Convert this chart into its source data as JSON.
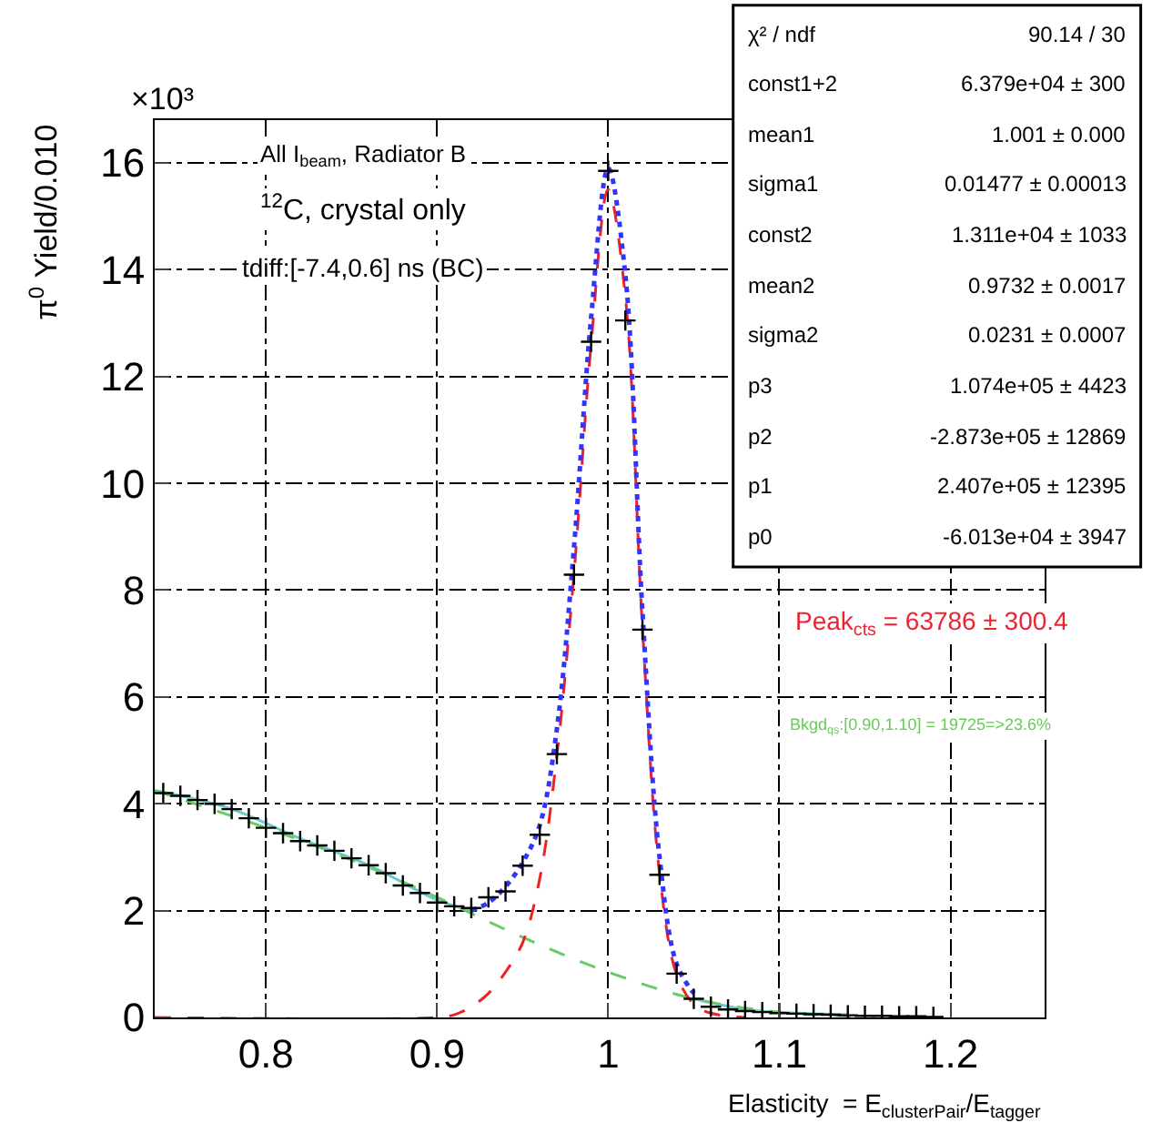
{
  "chart_data": {
    "type": "scatter",
    "xlabel": "Elasticity  = E$_{clusterPair}$/E$_{tagger}$",
    "ylabel": "π$^{0}$ Yield/0.010",
    "xlim": [
      0.735,
      1.255
    ],
    "xticks": [
      0.8,
      0.9,
      1,
      1.1,
      1.2
    ],
    "ylim": [
      0,
      16.8
    ],
    "yticks": [
      0,
      2,
      4,
      6,
      8,
      10,
      12,
      14,
      16
    ],
    "grid": true,
    "series": [
      {
        "type": "line",
        "color": "#66cccc",
        "line_style": "solid",
        "x": [
          0.735,
          0.78,
          0.82,
          0.86,
          0.9,
          0.92,
          0.98,
          1.05,
          1.08,
          1.1,
          1.14
        ],
        "values": [
          4.25,
          3.9,
          3.35,
          2.85,
          2.2,
          2.0,
          null,
          0.35,
          0.15,
          0.1,
          0.05
        ]
      },
      {
        "type": "line",
        "color": "#66cc66",
        "line_style": "dashed",
        "x": [
          0.735,
          0.8,
          0.85,
          0.9,
          0.95,
          1.0,
          1.05,
          1.1,
          1.15
        ],
        "values": [
          4.25,
          3.55,
          2.95,
          2.25,
          1.5,
          0.85,
          0.35,
          0.1,
          0.02
        ]
      },
      {
        "type": "line",
        "color": "#ee2222",
        "line_style": "dashed",
        "x": [
          0.735,
          0.9,
          0.91,
          0.92,
          0.93,
          0.94,
          0.95,
          0.96,
          0.97,
          0.98,
          0.99,
          1.0,
          1.01,
          1.02,
          1.03,
          1.04,
          1.05,
          1.06,
          1.08
        ],
        "values": [
          0,
          0,
          0.05,
          0.2,
          0.45,
          0.85,
          1.4,
          2.6,
          4.9,
          8.3,
          12.6,
          15.5,
          13.5,
          7.3,
          2.7,
          0.8,
          0.25,
          0.08,
          0
        ]
      },
      {
        "type": "line",
        "color": "#3333ff",
        "line_style": "dotted",
        "x": [
          0.92,
          0.93,
          0.94,
          0.95,
          0.96,
          0.97,
          0.98,
          0.99,
          1.0,
          1.01,
          1.02,
          1.03,
          1.04,
          1.05
        ],
        "values": [
          2.0,
          2.15,
          2.45,
          2.9,
          3.6,
          5.4,
          8.8,
          13.1,
          15.9,
          13.9,
          7.6,
          3.0,
          1.0,
          0.45
        ]
      },
      {
        "color": "#000000",
        "marker": "cross",
        "x": [
          0.74,
          0.75,
          0.76,
          0.77,
          0.78,
          0.79,
          0.8,
          0.81,
          0.82,
          0.83,
          0.84,
          0.85,
          0.86,
          0.87,
          0.88,
          0.89,
          0.9,
          0.91,
          0.92,
          0.93,
          0.94,
          0.95,
          0.96,
          0.97,
          0.98,
          0.99,
          1.0,
          1.01,
          1.02,
          1.03,
          1.04,
          1.05,
          1.06,
          1.07,
          1.08,
          1.09,
          1.1,
          1.11,
          1.12,
          1.13,
          1.14,
          1.15,
          1.16,
          1.17,
          1.18,
          1.19
        ],
        "values": [
          4.2,
          4.15,
          4.07,
          4.0,
          3.9,
          3.73,
          3.55,
          3.45,
          3.3,
          3.22,
          3.12,
          2.98,
          2.85,
          2.7,
          2.47,
          2.33,
          2.15,
          2.08,
          2.05,
          2.25,
          2.36,
          2.84,
          3.42,
          4.93,
          8.29,
          12.65,
          15.85,
          13.05,
          7.26,
          2.67,
          0.82,
          0.35,
          0.2,
          0.15,
          0.12,
          0.1,
          0.08,
          0.07,
          0.06,
          0.05,
          0.04,
          0.03,
          0.03,
          0.02,
          0.02,
          0.01
        ]
      }
    ],
    "annotations": [
      "×10³",
      "All I$_{beam}$, Radiator B",
      "$^{12}$C, crystal only",
      "tdiff:[-7.4,0.6] ns (BC)",
      "χ² / ndf",
      "90.14 / 30",
      "const1+2",
      "6.379e+04 ± 300",
      "mean1",
      "1.001 ± 0.000",
      "sigma1",
      "0.01477 ± 0.00013",
      "const2",
      "1.311e+04 ± 1033",
      "mean2",
      "0.9732 ± 0.0017",
      "sigma2",
      "0.0231 ± 0.0007",
      "p3",
      "1.074e+05 ± 4423",
      "p2",
      "-2.873e+05 ± 12869",
      "p1",
      "2.407e+05 ± 12395",
      "p0",
      "-6.013e+04 ± 3947",
      "Peak$_{cts}$ = 63786 ± 300.4",
      "Bkgd$_{qs}$:[0.90,1.10] = 19725=>23.6%"
    ]
  }
}
